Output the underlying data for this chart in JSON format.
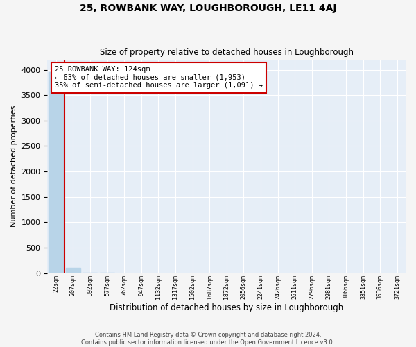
{
  "title": "25, ROWBANK WAY, LOUGHBOROUGH, LE11 4AJ",
  "subtitle": "Size of property relative to detached houses in Loughborough",
  "xlabel": "Distribution of detached houses by size in Loughborough",
  "ylabel": "Number of detached properties",
  "categories": [
    "22sqm",
    "207sqm",
    "392sqm",
    "577sqm",
    "762sqm",
    "947sqm",
    "1132sqm",
    "1317sqm",
    "1502sqm",
    "1687sqm",
    "1872sqm",
    "2056sqm",
    "2241sqm",
    "2426sqm",
    "2611sqm",
    "2796sqm",
    "2981sqm",
    "3166sqm",
    "3351sqm",
    "3536sqm",
    "3721sqm"
  ],
  "values": [
    3950,
    105,
    5,
    3,
    2,
    1,
    1,
    1,
    0,
    0,
    0,
    0,
    0,
    0,
    0,
    0,
    0,
    0,
    0,
    0,
    0
  ],
  "bar_color": "#b8d4e8",
  "annotation_line1": "25 ROWBANK WAY: 124sqm",
  "annotation_line2": "← 63% of detached houses are smaller (1,953)",
  "annotation_line3": "35% of semi-detached houses are larger (1,091) →",
  "annotation_box_color": "#ffffff",
  "annotation_border_color": "#cc0000",
  "marker_line_color": "#cc0000",
  "ylim": [
    0,
    4200
  ],
  "yticks": [
    0,
    500,
    1000,
    1500,
    2000,
    2500,
    3000,
    3500,
    4000
  ],
  "background_color": "#e6eef7",
  "grid_color": "#ffffff",
  "fig_background": "#f5f5f5",
  "footer_line1": "Contains HM Land Registry data © Crown copyright and database right 2024.",
  "footer_line2": "Contains public sector information licensed under the Open Government Licence v3.0."
}
